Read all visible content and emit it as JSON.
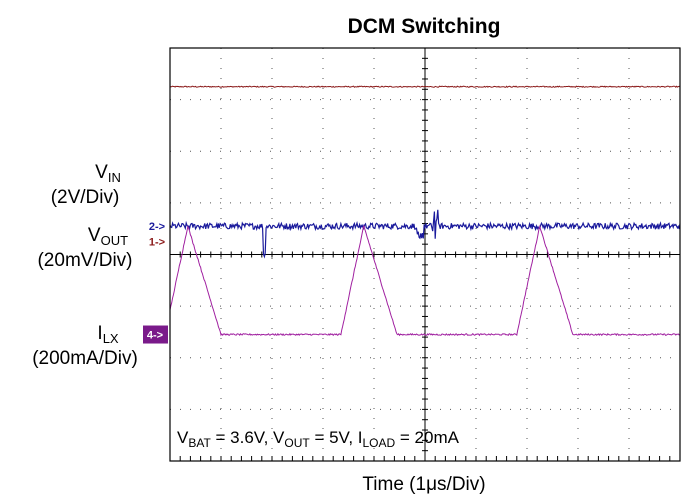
{
  "chart_data": {
    "type": "line",
    "title": "DCM Switching",
    "xlabel_prefix": "Time (1",
    "xlabel_mu": "μ",
    "xlabel_suffix": "s/Div)",
    "grid": true,
    "x_divisions": 10,
    "y_divisions": 8,
    "annotation": {
      "parts": [
        {
          "t": "V",
          "sub": false
        },
        {
          "t": "BAT",
          "sub": true
        },
        {
          "t": " = 3.6V, V",
          "sub": false
        },
        {
          "t": "OUT",
          "sub": true
        },
        {
          "t": " = 5V, I",
          "sub": false
        },
        {
          "t": "LOAD",
          "sub": true
        },
        {
          "t": " = 20mA",
          "sub": false
        }
      ]
    },
    "channels": [
      {
        "marker": "1->",
        "name_main": "V",
        "name_sub": "IN",
        "scale": "(2V/Div)",
        "color": "#8b1a1a",
        "ref_level": 0.25,
        "kind": "dc",
        "level": 3.25,
        "noise": 0.02
      },
      {
        "marker": "2->",
        "name_main": "V",
        "name_sub": "OUT",
        "scale": "(20mV/Div)",
        "color": "#1a1a9c",
        "ref_level": 0.55,
        "kind": "ripple",
        "level": 0.55,
        "noise": 0.12
      },
      {
        "marker": "4->",
        "name_main": "I",
        "name_sub": "LX",
        "scale": "(200mA/Div)",
        "color": "#a020a0",
        "ref_level": -1.55,
        "kind": "triangle",
        "level": -1.55,
        "peak": 0.55,
        "period_div": 3.45,
        "first_start_div": 3.35,
        "rise_div": 0.45,
        "fall_div": 0.65
      }
    ]
  }
}
